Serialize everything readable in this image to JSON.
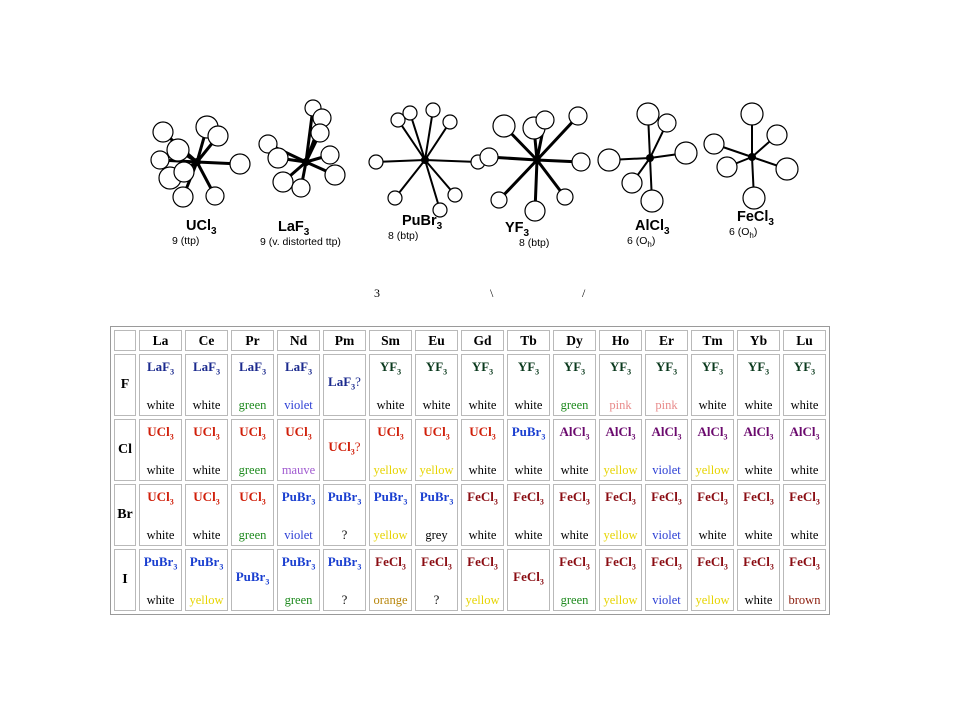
{
  "structures": [
    {
      "formula": "UCl",
      "sub": "3",
      "cn": "9 (ttp)"
    },
    {
      "formula": "LaF",
      "sub": "3",
      "cn": "9 (v. distorted ttp)"
    },
    {
      "formula": "PuBr",
      "sub": "3",
      "cn": "8 (btp)"
    },
    {
      "formula": "YF",
      "sub": "3",
      "cn": "8 (btp)"
    },
    {
      "formula": "AlCl",
      "sub": "3",
      "cn": "6 (O",
      "cn_sub": "h",
      "cn_end": ")"
    },
    {
      "formula": "FeCl",
      "sub": "3",
      "cn": "6 (O",
      "cn_sub": "h",
      "cn_end": ")"
    }
  ],
  "fragments": [
    "3",
    "\\",
    "/"
  ],
  "elements": [
    "La",
    "Ce",
    "Pr",
    "Nd",
    "Pm",
    "Sm",
    "Eu",
    "Gd",
    "Tb",
    "Dy",
    "Ho",
    "Er",
    "Tm",
    "Yb",
    "Lu"
  ],
  "colors": {
    "UCl3": "#d01f0a",
    "LaF3": "#1b2a8e",
    "PuBr3": "#1a3fd0",
    "YF3": "#0b3a1e",
    "AlCl3": "#6b0a6e",
    "FeCl3": "#8a0c12",
    "white": "#000000",
    "green": "#1e8a1e",
    "violet": "#2a3dd4",
    "pink": "#e88a8a",
    "mauve": "#a05ad0",
    "yellow": "#e6d400",
    "grey": "#000000",
    "orange": "#b8860b",
    "brown": "#8a1a0a",
    "unknown": "#000000"
  },
  "rows": [
    {
      "halide": "F",
      "cells": [
        {
          "f": "LaF",
          "s": "3",
          "t": "LaF3",
          "c": "white"
        },
        {
          "f": "LaF",
          "s": "3",
          "t": "LaF3",
          "c": "white"
        },
        {
          "f": "LaF",
          "s": "3",
          "t": "LaF3",
          "c": "green"
        },
        {
          "f": "LaF",
          "s": "3",
          "t": "LaF3",
          "c": "violet"
        },
        {
          "f": "LaF",
          "s": "3",
          "q": "?",
          "t": "LaF3",
          "c": "",
          "mid": true
        },
        {
          "f": "YF",
          "s": "3",
          "t": "YF3",
          "c": "white"
        },
        {
          "f": "YF",
          "s": "3",
          "t": "YF3",
          "c": "white"
        },
        {
          "f": "YF",
          "s": "3",
          "t": "YF3",
          "c": "white"
        },
        {
          "f": "YF",
          "s": "3",
          "t": "YF3",
          "c": "white"
        },
        {
          "f": "YF",
          "s": "3",
          "t": "YF3",
          "c": "green"
        },
        {
          "f": "YF",
          "s": "3",
          "t": "YF3",
          "c": "pink"
        },
        {
          "f": "YF",
          "s": "3",
          "t": "YF3",
          "c": "pink"
        },
        {
          "f": "YF",
          "s": "3",
          "t": "YF3",
          "c": "white"
        },
        {
          "f": "YF",
          "s": "3",
          "t": "YF3",
          "c": "white"
        },
        {
          "f": "YF",
          "s": "3",
          "t": "YF3",
          "c": "white"
        }
      ]
    },
    {
      "halide": "Cl",
      "cells": [
        {
          "f": "UCl",
          "s": "3",
          "t": "UCl3",
          "c": "white"
        },
        {
          "f": "UCl",
          "s": "3",
          "t": "UCl3",
          "c": "white"
        },
        {
          "f": "UCl",
          "s": "3",
          "t": "UCl3",
          "c": "green"
        },
        {
          "f": "UCl",
          "s": "3",
          "t": "UCl3",
          "c": "mauve"
        },
        {
          "f": "UCl",
          "s": "3",
          "q": "?",
          "t": "UCl3",
          "c": "",
          "mid": true
        },
        {
          "f": "UCl",
          "s": "3",
          "t": "UCl3",
          "c": "yellow"
        },
        {
          "f": "UCl",
          "s": "3",
          "t": "UCl3",
          "c": "yellow"
        },
        {
          "f": "UCl",
          "s": "3",
          "t": "UCl3",
          "c": "white"
        },
        {
          "f": "PuBr",
          "s": "3",
          "t": "PuBr3",
          "c": "white"
        },
        {
          "f": "AlCl",
          "s": "3",
          "t": "AlCl3",
          "c": "white"
        },
        {
          "f": "AlCl",
          "s": "3",
          "t": "AlCl3",
          "c": "yellow"
        },
        {
          "f": "AlCl",
          "s": "3",
          "t": "AlCl3",
          "c": "violet"
        },
        {
          "f": "AlCl",
          "s": "3",
          "t": "AlCl3",
          "c": "yellow"
        },
        {
          "f": "AlCl",
          "s": "3",
          "t": "AlCl3",
          "c": "white"
        },
        {
          "f": "AlCl",
          "s": "3",
          "t": "AlCl3",
          "c": "white"
        }
      ]
    },
    {
      "halide": "Br",
      "cells": [
        {
          "f": "UCl",
          "s": "3",
          "t": "UCl3",
          "c": "white"
        },
        {
          "f": "UCl",
          "s": "3",
          "t": "UCl3",
          "c": "white"
        },
        {
          "f": "UCl",
          "s": "3",
          "t": "UCl3",
          "c": "green"
        },
        {
          "f": "PuBr",
          "s": "3",
          "t": "PuBr3",
          "c": "violet"
        },
        {
          "f": "PuBr",
          "s": "3",
          "t": "PuBr3",
          "c": "?",
          "ck": "unknown"
        },
        {
          "f": "PuBr",
          "s": "3",
          "t": "PuBr3",
          "c": "yellow"
        },
        {
          "f": "PuBr",
          "s": "3",
          "t": "PuBr3",
          "c": "grey"
        },
        {
          "f": "FeCl",
          "s": "3",
          "t": "FeCl3",
          "c": "white"
        },
        {
          "f": "FeCl",
          "s": "3",
          "t": "FeCl3",
          "c": "white"
        },
        {
          "f": "FeCl",
          "s": "3",
          "t": "FeCl3",
          "c": "white"
        },
        {
          "f": "FeCl",
          "s": "3",
          "t": "FeCl3",
          "c": "yellow"
        },
        {
          "f": "FeCl",
          "s": "3",
          "t": "FeCl3",
          "c": "violet"
        },
        {
          "f": "FeCl",
          "s": "3",
          "t": "FeCl3",
          "c": "white"
        },
        {
          "f": "FeCl",
          "s": "3",
          "t": "FeCl3",
          "c": "white"
        },
        {
          "f": "FeCl",
          "s": "3",
          "t": "FeCl3",
          "c": "white"
        }
      ]
    },
    {
      "halide": "I",
      "cells": [
        {
          "f": "PuBr",
          "s": "3",
          "t": "PuBr3",
          "c": "white"
        },
        {
          "f": "PuBr",
          "s": "3",
          "t": "PuBr3",
          "c": "yellow"
        },
        {
          "f": "PuBr",
          "s": "3",
          "t": "PuBr3",
          "c": "",
          "mid": true
        },
        {
          "f": "PuBr",
          "s": "3",
          "t": "PuBr3",
          "c": "green"
        },
        {
          "f": "PuBr",
          "s": "3",
          "t": "PuBr3",
          "c": "?",
          "ck": "unknown"
        },
        {
          "f": "FeCl",
          "s": "3",
          "t": "FeCl3",
          "c": "orange"
        },
        {
          "f": "FeCl",
          "s": "3",
          "t": "FeCl3",
          "c": "?",
          "ck": "unknown"
        },
        {
          "f": "FeCl",
          "s": "3",
          "t": "FeCl3",
          "c": "yellow"
        },
        {
          "f": "FeCl",
          "s": "3",
          "t": "FeCl3",
          "c": "",
          "mid": true
        },
        {
          "f": "FeCl",
          "s": "3",
          "t": "FeCl3",
          "c": "green"
        },
        {
          "f": "FeCl",
          "s": "3",
          "t": "FeCl3",
          "c": "yellow"
        },
        {
          "f": "FeCl",
          "s": "3",
          "t": "FeCl3",
          "c": "violet"
        },
        {
          "f": "FeCl",
          "s": "3",
          "t": "FeCl3",
          "c": "yellow"
        },
        {
          "f": "FeCl",
          "s": "3",
          "t": "FeCl3",
          "c": "white"
        },
        {
          "f": "FeCl",
          "s": "3",
          "t": "FeCl3",
          "c": "brown"
        }
      ]
    }
  ]
}
